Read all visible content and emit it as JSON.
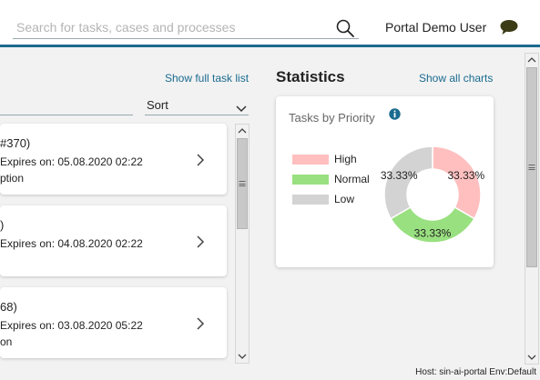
{
  "header": {
    "search_placeholder": "Search for tasks, cases and processes",
    "user_name": "Portal Demo User"
  },
  "tasks_panel": {
    "show_full_link": "Show full task list",
    "sort_label": "Sort",
    "items": [
      {
        "title": "#370)",
        "expiry": "Expires on: 05.08.2020 02:22",
        "desc": "ption"
      },
      {
        "title": ")",
        "expiry": "Expires on: 04.08.2020 02:22",
        "desc": ""
      },
      {
        "title": "68)",
        "expiry": "Expires on: 03.08.2020 05:22",
        "desc": "on"
      }
    ]
  },
  "statistics": {
    "title": "Statistics",
    "show_all_link": "Show all charts"
  },
  "chart_data": {
    "type": "pie",
    "title": "Tasks by Priority",
    "donut": true,
    "legend_position": "left",
    "categories": [
      "High",
      "Normal",
      "Low"
    ],
    "values": [
      33.33,
      33.33,
      33.33
    ],
    "labels": [
      "33.33%",
      "33.33%",
      "33.33%"
    ],
    "colors": [
      "#ffbfbf",
      "#99e080",
      "#d3d3d3"
    ]
  },
  "footer": {
    "host_env": "Host: sin-ai-portal Env:Default"
  },
  "colors": {
    "accent": "#1a6b8f"
  },
  "icons": {
    "search": "search-icon",
    "chat": "chat-icon",
    "info": "info-icon",
    "chevron_right": "chevron-right-icon",
    "chevron_down": "chevron-down-icon"
  }
}
